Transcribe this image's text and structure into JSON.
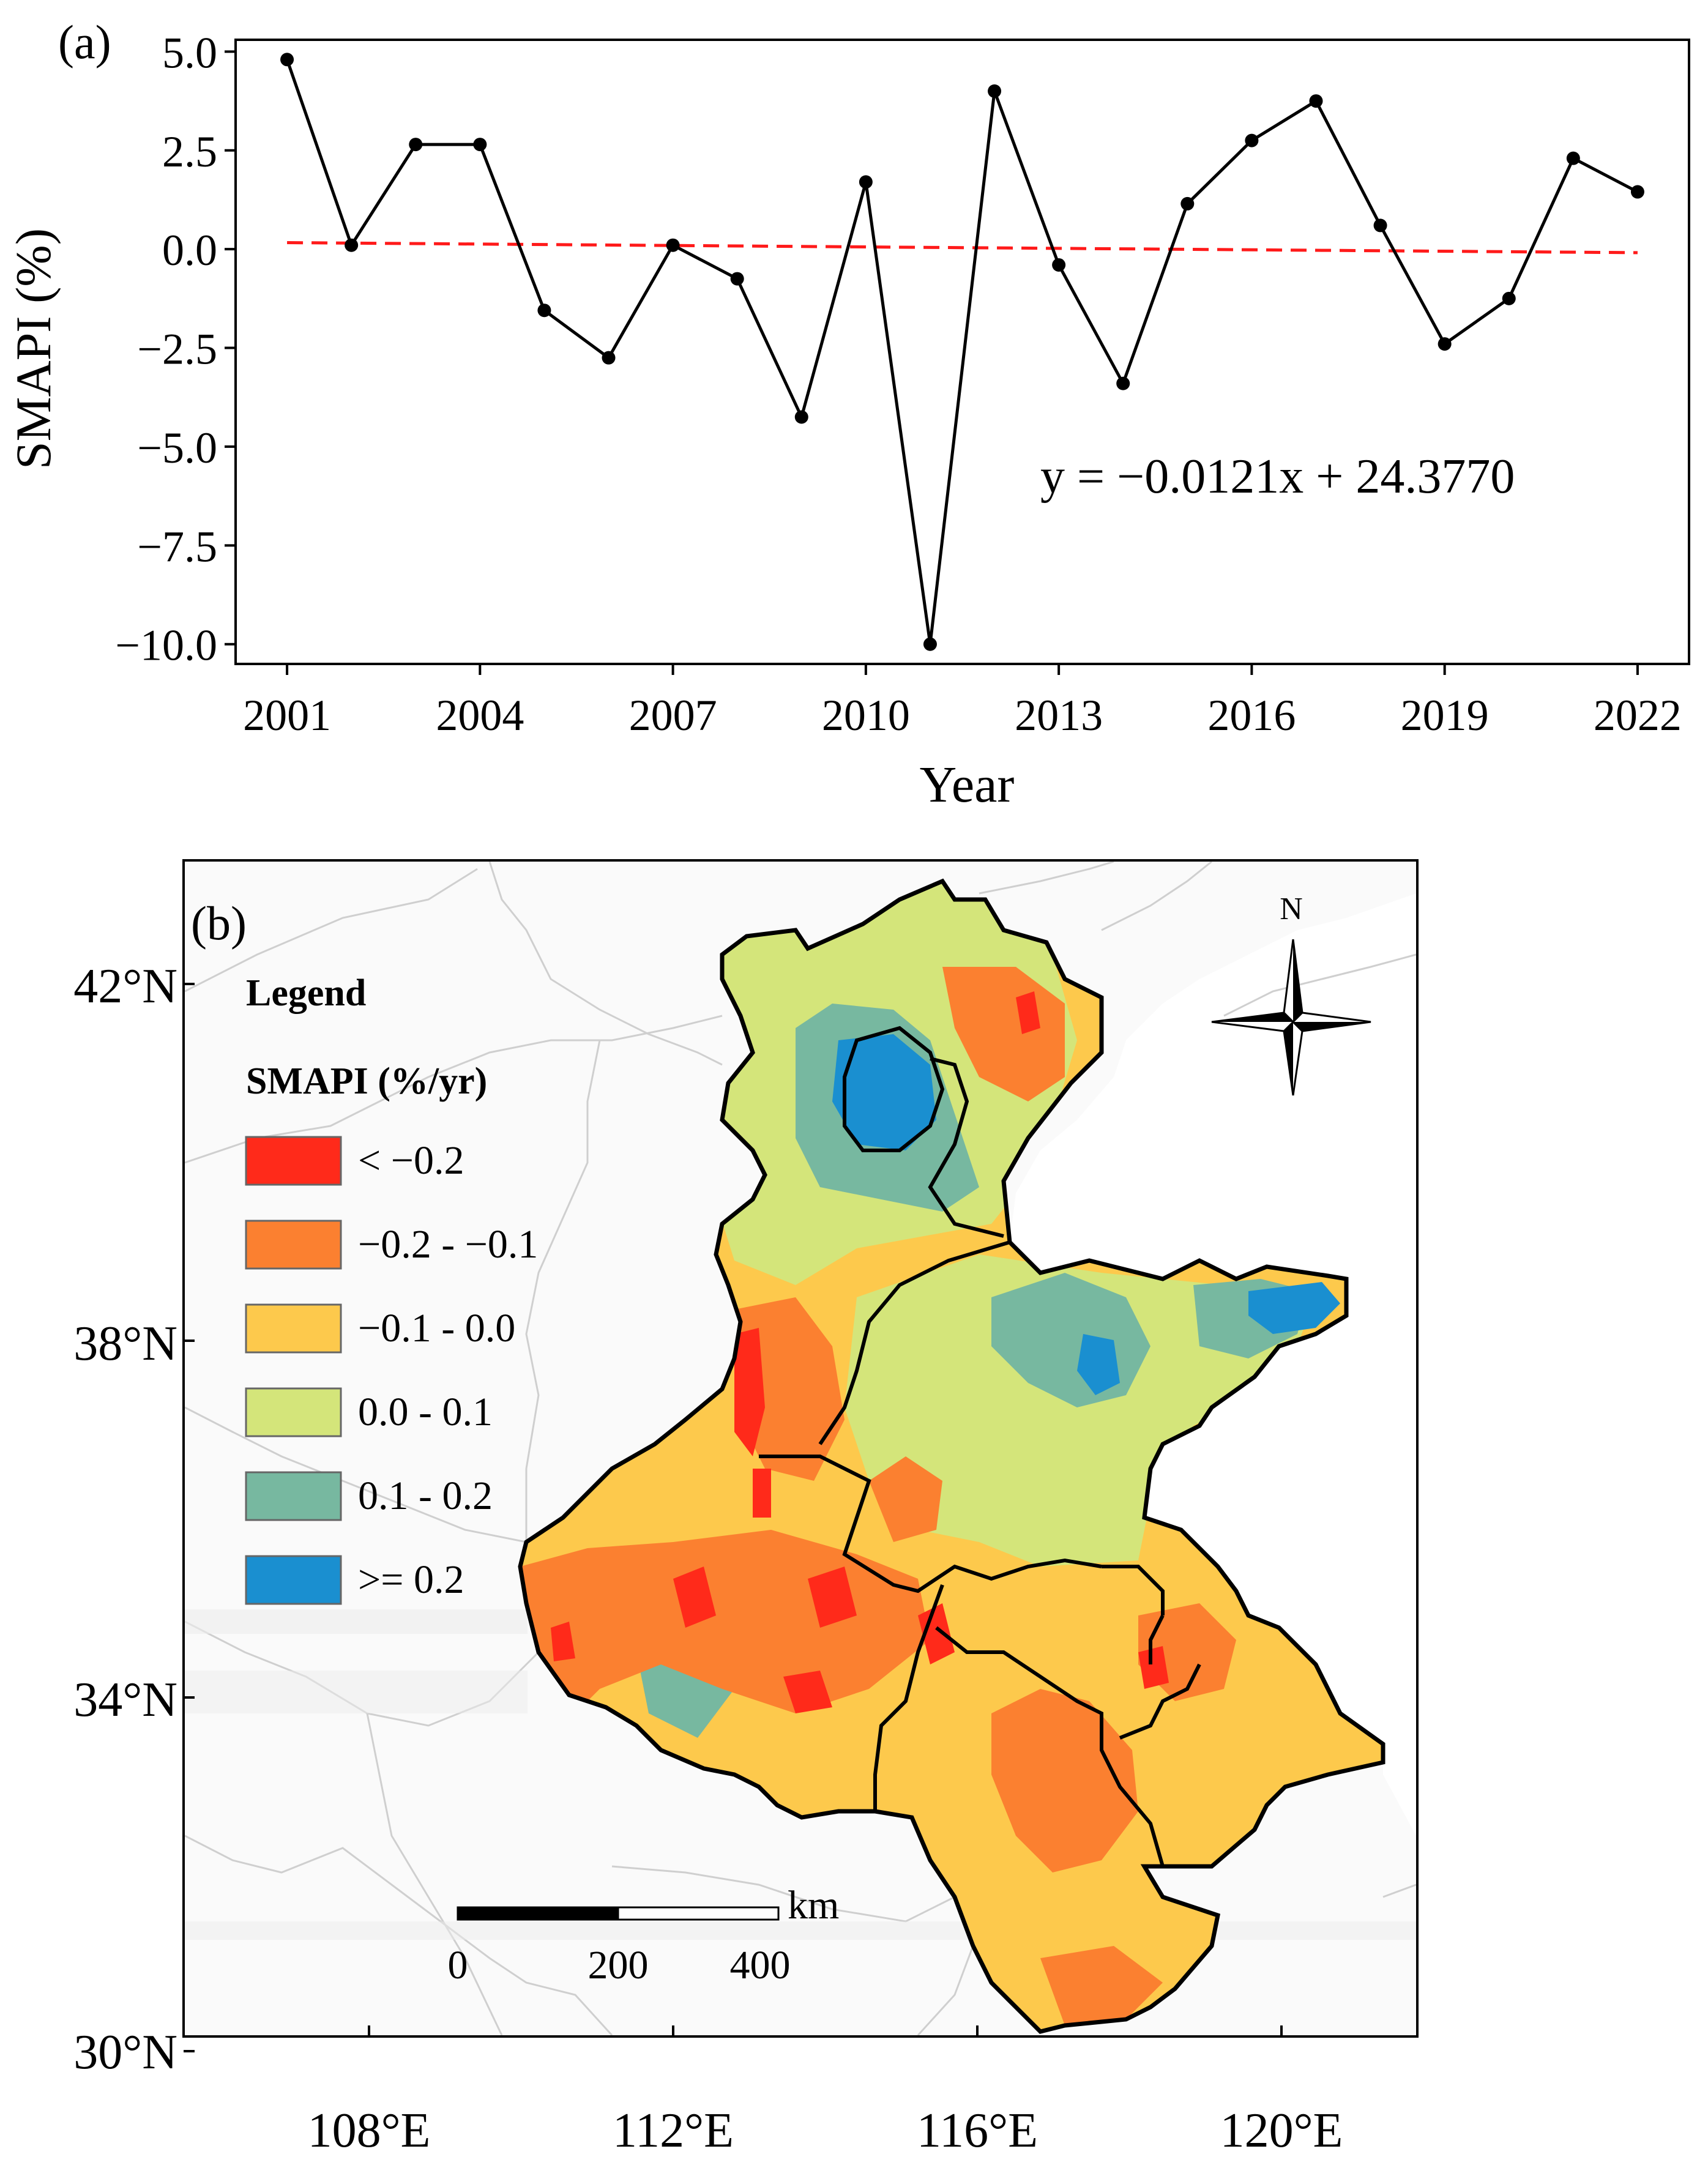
{
  "panel_a": {
    "label": "(a)",
    "equation": "y = −0.0121x + 24.3770"
  },
  "panel_b": {
    "label": "(b)",
    "legend_title": "Legend",
    "legend_subtitle": "SMAPI (%/yr)",
    "legend_items": [
      {
        "label": "< −0.2",
        "color": "#ff2a1a"
      },
      {
        "label": "−0.2 - −0.1",
        "color": "#fb8030"
      },
      {
        "label": "−0.1 - 0.0",
        "color": "#fdc94c"
      },
      {
        "label": "0.0 - 0.1",
        "color": "#d4e57a"
      },
      {
        "label": "0.1 - 0.2",
        "color": "#77b8a0"
      },
      {
        "label": ">= 0.2",
        "color": "#1a8fd0"
      }
    ],
    "north_label": "N",
    "scale_unit": "km",
    "scale_ticks": [
      "0",
      "200",
      "400"
    ],
    "lat_labels": [
      "42°N",
      "38°N",
      "34°N",
      "30°N"
    ],
    "lon_labels": [
      "108°E",
      "112°E",
      "116°E",
      "120°E"
    ]
  },
  "chart_data": {
    "type": "line",
    "title": "",
    "xlabel": "Year",
    "ylabel": "SMAPI (%)",
    "x": [
      2001,
      2002,
      2003,
      2004,
      2005,
      2006,
      2007,
      2008,
      2009,
      2010,
      2011,
      2012,
      2013,
      2014,
      2015,
      2016,
      2017,
      2018,
      2019,
      2020,
      2021,
      2022
    ],
    "values": [
      4.8,
      0.1,
      2.65,
      2.65,
      -1.55,
      -2.75,
      0.1,
      -0.75,
      -4.25,
      1.7,
      -10.0,
      4.0,
      -0.4,
      -3.4,
      1.15,
      2.75,
      3.75,
      0.6,
      -2.4,
      -1.25,
      2.3,
      1.45
    ],
    "xticks": [
      2001,
      2004,
      2007,
      2010,
      2013,
      2016,
      2019,
      2022
    ],
    "xtick_labels": [
      "2001",
      "2004",
      "2007",
      "2010",
      "2013",
      "2016",
      "2019",
      "2022"
    ],
    "yticks": [
      5.0,
      2.5,
      0.0,
      -2.5,
      -5.0,
      -7.5,
      -10.0
    ],
    "ytick_labels": [
      "5.0",
      "2.5",
      "0.0",
      "−2.5",
      "−5.0",
      "−7.5",
      "−10.0"
    ],
    "ylim": [
      -10.5,
      5.3
    ],
    "xlim": [
      2000.2,
      2022.8
    ],
    "trend": {
      "slope": -0.0121,
      "intercept": 24.377,
      "style": "dashed",
      "color": "#ff0000"
    },
    "line_color": "#000000"
  }
}
